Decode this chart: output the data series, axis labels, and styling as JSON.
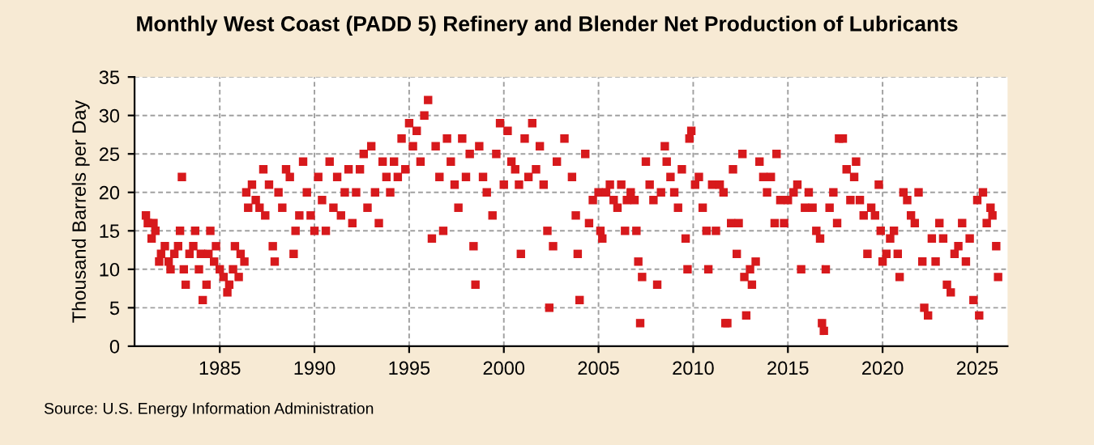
{
  "chart_data": {
    "type": "scatter",
    "title": "Monthly West Coast (PADD 5) Refinery and Blender Net Production of Lubricants",
    "ylabel": "Thousand Barrels per Day",
    "annotations": [
      "Source: U.S. Energy Information Administration"
    ],
    "marker": "square",
    "grid": true,
    "xlim": [
      1980.5,
      2026.6
    ],
    "xticks": [
      1985,
      1990,
      1995,
      2000,
      2005,
      2010,
      2015,
      2020,
      2025
    ],
    "ylim": [
      0,
      35
    ],
    "yticks": [
      0,
      5,
      10,
      15,
      20,
      25,
      30,
      35
    ],
    "series": [
      {
        "color": "#d7191c",
        "x": [
          1981.1,
          1981.2,
          1981.4,
          1981.5,
          1981.6,
          1981.8,
          1981.9,
          1982.1,
          1982.3,
          1982.4,
          1982.6,
          1982.8,
          1982.9,
          1983.0,
          1983.1,
          1983.2,
          1983.4,
          1983.6,
          1983.7,
          1983.9,
          1984.0,
          1984.1,
          1984.3,
          1984.4,
          1984.5,
          1984.7,
          1984.8,
          1985.0,
          1985.2,
          1985.4,
          1985.5,
          1985.7,
          1985.8,
          1986.0,
          1986.1,
          1986.3,
          1986.4,
          1986.5,
          1986.7,
          1986.9,
          1987.1,
          1987.3,
          1987.4,
          1987.6,
          1987.8,
          1987.9,
          1988.1,
          1988.3,
          1988.5,
          1988.7,
          1988.9,
          1989.0,
          1989.2,
          1989.4,
          1989.6,
          1989.8,
          1990.0,
          1990.2,
          1990.4,
          1990.6,
          1990.8,
          1991.0,
          1991.2,
          1991.4,
          1991.6,
          1991.8,
          1992.0,
          1992.2,
          1992.4,
          1992.6,
          1992.8,
          1993.0,
          1993.2,
          1993.4,
          1993.6,
          1993.8,
          1994.0,
          1994.2,
          1994.4,
          1994.6,
          1994.8,
          1995.0,
          1995.2,
          1995.4,
          1995.6,
          1995.8,
          1996.0,
          1996.2,
          1996.4,
          1996.6,
          1996.8,
          1997.0,
          1997.2,
          1997.4,
          1997.6,
          1997.8,
          1998.0,
          1998.2,
          1998.4,
          1998.5,
          1998.7,
          1998.9,
          1999.1,
          1999.4,
          1999.6,
          1999.8,
          2000.0,
          2000.2,
          2000.4,
          2000.6,
          2000.8,
          2000.9,
          2001.1,
          2001.3,
          2001.5,
          2001.7,
          2001.9,
          2002.1,
          2002.3,
          2002.4,
          2002.6,
          2002.8,
          2003.2,
          2003.6,
          2003.8,
          2003.9,
          2004.0,
          2004.3,
          2004.5,
          2004.7,
          2005.0,
          2005.1,
          2005.2,
          2005.4,
          2005.6,
          2005.8,
          2006.0,
          2006.2,
          2006.4,
          2006.5,
          2006.7,
          2006.9,
          2007.0,
          2007.1,
          2007.2,
          2007.3,
          2007.5,
          2007.7,
          2007.9,
          2008.1,
          2008.3,
          2008.5,
          2008.6,
          2008.8,
          2009.0,
          2009.2,
          2009.4,
          2009.6,
          2009.7,
          2009.8,
          2009.9,
          2010.1,
          2010.3,
          2010.5,
          2010.7,
          2010.8,
          2011.0,
          2011.2,
          2011.4,
          2011.6,
          2011.7,
          2011.8,
          2012.0,
          2012.1,
          2012.3,
          2012.4,
          2012.6,
          2012.7,
          2012.8,
          2013.0,
          2013.1,
          2013.3,
          2013.5,
          2013.7,
          2013.9,
          2014.1,
          2014.3,
          2014.4,
          2014.6,
          2014.8,
          2015.0,
          2015.3,
          2015.5,
          2015.7,
          2015.9,
          2016.1,
          2016.3,
          2016.5,
          2016.7,
          2016.8,
          2016.9,
          2017.0,
          2017.2,
          2017.4,
          2017.6,
          2017.7,
          2017.9,
          2018.1,
          2018.3,
          2018.5,
          2018.6,
          2018.8,
          2019.0,
          2019.2,
          2019.4,
          2019.6,
          2019.8,
          2019.9,
          2020.0,
          2020.2,
          2020.4,
          2020.6,
          2020.8,
          2020.9,
          2021.1,
          2021.3,
          2021.5,
          2021.7,
          2021.9,
          2022.1,
          2022.2,
          2022.4,
          2022.6,
          2022.8,
          2023.0,
          2023.2,
          2023.4,
          2023.6,
          2023.8,
          2024.0,
          2024.2,
          2024.4,
          2024.6,
          2024.8,
          2025.0,
          2025.1,
          2025.3,
          2025.5,
          2025.7,
          2025.8,
          2026.0,
          2026.1
        ],
        "values": [
          17,
          16,
          14,
          16,
          15,
          11,
          12,
          13,
          11,
          10,
          12,
          13,
          15,
          22,
          10,
          8,
          12,
          13,
          15,
          10,
          12,
          6,
          8,
          12,
          15,
          11,
          13,
          10,
          9,
          7,
          8,
          10,
          13,
          9,
          12,
          11,
          20,
          18,
          21,
          19,
          18,
          23,
          17,
          21,
          13,
          11,
          20,
          18,
          23,
          22,
          12,
          15,
          17,
          24,
          20,
          17,
          15,
          22,
          19,
          15,
          24,
          18,
          22,
          17,
          20,
          23,
          16,
          20,
          23,
          25,
          18,
          26,
          20,
          16,
          24,
          22,
          20,
          24,
          22,
          27,
          23,
          29,
          26,
          28,
          24,
          30,
          32,
          14,
          26,
          22,
          15,
          27,
          24,
          21,
          18,
          27,
          22,
          25,
          13,
          8,
          26,
          22,
          20,
          17,
          25,
          29,
          21,
          28,
          24,
          23,
          21,
          12,
          27,
          22,
          29,
          23,
          26,
          21,
          15,
          5,
          13,
          24,
          27,
          22,
          17,
          12,
          6,
          25,
          16,
          19,
          20,
          15,
          14,
          20,
          21,
          19,
          18,
          21,
          15,
          19,
          20,
          19,
          15,
          11,
          3,
          9,
          24,
          21,
          19,
          8,
          20,
          26,
          24,
          22,
          20,
          18,
          23,
          14,
          10,
          27,
          28,
          21,
          22,
          18,
          15,
          10,
          21,
          15,
          21,
          20,
          3,
          3,
          16,
          23,
          12,
          16,
          25,
          9,
          4,
          10,
          8,
          11,
          24,
          22,
          20,
          22,
          16,
          25,
          19,
          16,
          19,
          20,
          21,
          10,
          18,
          20,
          18,
          15,
          14,
          3,
          2,
          10,
          18,
          20,
          16,
          27,
          27,
          23,
          19,
          22,
          24,
          19,
          17,
          12,
          18,
          17,
          21,
          15,
          11,
          12,
          14,
          15,
          12,
          9,
          20,
          19,
          17,
          16,
          20,
          11,
          5,
          4,
          14,
          11,
          16,
          14,
          8,
          7,
          12,
          13,
          16,
          11,
          14,
          6,
          19,
          4,
          20,
          16,
          18,
          17,
          13,
          9
        ]
      }
    ]
  }
}
